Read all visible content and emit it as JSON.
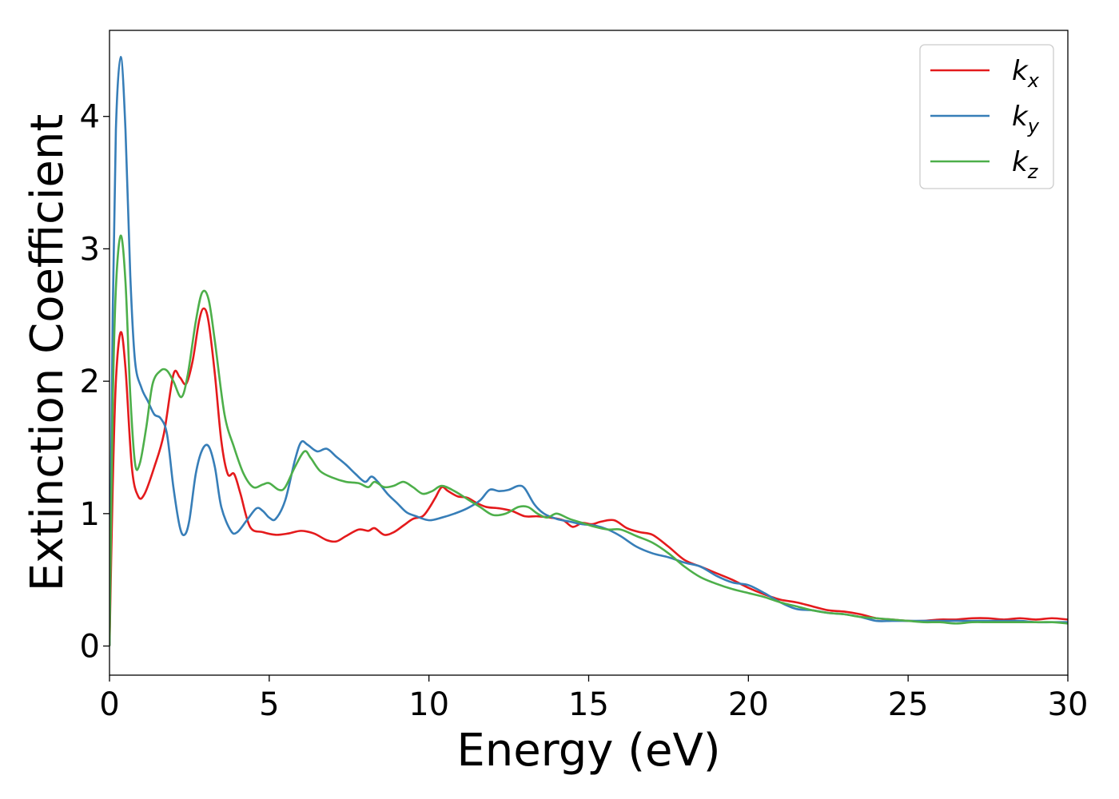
{
  "chart_data": {
    "type": "line",
    "xlabel": "Energy (eV)",
    "ylabel": "Extinction Coefficient",
    "xlim": [
      0,
      30
    ],
    "ylim": [
      -0.22,
      4.65
    ],
    "xticks": [
      0,
      5,
      10,
      15,
      20,
      25,
      30
    ],
    "xtick_labels": [
      "0",
      "5",
      "10",
      "15",
      "20",
      "25",
      "30"
    ],
    "yticks": [
      0,
      1,
      2,
      3,
      4
    ],
    "ytick_labels": [
      "0",
      "1",
      "2",
      "3",
      "4"
    ],
    "grid": false,
    "legend_position": "top-right",
    "series": [
      {
        "name": "k",
        "subscript": "x",
        "color": "#e41a1c",
        "points": [
          [
            0,
            0
          ],
          [
            0.1,
            1.2
          ],
          [
            0.2,
            2.0
          ],
          [
            0.35,
            2.37
          ],
          [
            0.5,
            2.1
          ],
          [
            0.7,
            1.35
          ],
          [
            0.9,
            1.13
          ],
          [
            1.1,
            1.15
          ],
          [
            1.4,
            1.35
          ],
          [
            1.7,
            1.6
          ],
          [
            2.0,
            2.05
          ],
          [
            2.2,
            2.03
          ],
          [
            2.4,
            1.98
          ],
          [
            2.6,
            2.15
          ],
          [
            2.8,
            2.45
          ],
          [
            2.95,
            2.55
          ],
          [
            3.1,
            2.45
          ],
          [
            3.3,
            2.05
          ],
          [
            3.5,
            1.55
          ],
          [
            3.7,
            1.3
          ],
          [
            3.9,
            1.3
          ],
          [
            4.1,
            1.15
          ],
          [
            4.4,
            0.9
          ],
          [
            4.8,
            0.86
          ],
          [
            5.2,
            0.84
          ],
          [
            5.6,
            0.85
          ],
          [
            6.0,
            0.87
          ],
          [
            6.4,
            0.85
          ],
          [
            6.8,
            0.8
          ],
          [
            7.1,
            0.79
          ],
          [
            7.4,
            0.83
          ],
          [
            7.8,
            0.88
          ],
          [
            8.1,
            0.87
          ],
          [
            8.3,
            0.89
          ],
          [
            8.6,
            0.84
          ],
          [
            8.9,
            0.86
          ],
          [
            9.2,
            0.91
          ],
          [
            9.5,
            0.96
          ],
          [
            9.8,
            0.98
          ],
          [
            10.0,
            1.04
          ],
          [
            10.2,
            1.12
          ],
          [
            10.4,
            1.2
          ],
          [
            10.6,
            1.17
          ],
          [
            10.9,
            1.13
          ],
          [
            11.2,
            1.12
          ],
          [
            11.5,
            1.08
          ],
          [
            11.8,
            1.05
          ],
          [
            12.2,
            1.04
          ],
          [
            12.6,
            1.02
          ],
          [
            13.0,
            0.98
          ],
          [
            13.4,
            0.98
          ],
          [
            13.8,
            0.97
          ],
          [
            14.2,
            0.95
          ],
          [
            14.5,
            0.9
          ],
          [
            14.8,
            0.93
          ],
          [
            15.1,
            0.92
          ],
          [
            15.4,
            0.94
          ],
          [
            15.8,
            0.95
          ],
          [
            16.2,
            0.89
          ],
          [
            16.6,
            0.86
          ],
          [
            17.0,
            0.84
          ],
          [
            17.5,
            0.75
          ],
          [
            18.0,
            0.65
          ],
          [
            18.5,
            0.6
          ],
          [
            19.0,
            0.55
          ],
          [
            19.5,
            0.5
          ],
          [
            20.0,
            0.44
          ],
          [
            20.5,
            0.39
          ],
          [
            21.0,
            0.35
          ],
          [
            21.5,
            0.33
          ],
          [
            22.0,
            0.3
          ],
          [
            22.5,
            0.27
          ],
          [
            23.0,
            0.26
          ],
          [
            23.5,
            0.24
          ],
          [
            24.0,
            0.21
          ],
          [
            24.5,
            0.2
          ],
          [
            25.0,
            0.19
          ],
          [
            25.5,
            0.19
          ],
          [
            26.0,
            0.2
          ],
          [
            26.5,
            0.2
          ],
          [
            27.0,
            0.21
          ],
          [
            27.5,
            0.21
          ],
          [
            28.0,
            0.2
          ],
          [
            28.5,
            0.21
          ],
          [
            29.0,
            0.2
          ],
          [
            29.5,
            0.21
          ],
          [
            30.0,
            0.2
          ]
        ]
      },
      {
        "name": "k",
        "subscript": "y",
        "color": "#377eb8",
        "points": [
          [
            0,
            0
          ],
          [
            0.1,
            2.5
          ],
          [
            0.2,
            3.9
          ],
          [
            0.35,
            4.45
          ],
          [
            0.5,
            3.9
          ],
          [
            0.65,
            2.8
          ],
          [
            0.8,
            2.15
          ],
          [
            1.0,
            1.95
          ],
          [
            1.2,
            1.85
          ],
          [
            1.4,
            1.75
          ],
          [
            1.6,
            1.72
          ],
          [
            1.8,
            1.6
          ],
          [
            2.0,
            1.2
          ],
          [
            2.2,
            0.9
          ],
          [
            2.35,
            0.84
          ],
          [
            2.5,
            0.95
          ],
          [
            2.7,
            1.3
          ],
          [
            2.9,
            1.48
          ],
          [
            3.1,
            1.51
          ],
          [
            3.3,
            1.35
          ],
          [
            3.5,
            1.05
          ],
          [
            3.8,
            0.87
          ],
          [
            4.0,
            0.86
          ],
          [
            4.3,
            0.95
          ],
          [
            4.6,
            1.04
          ],
          [
            4.8,
            1.02
          ],
          [
            5.0,
            0.97
          ],
          [
            5.2,
            0.96
          ],
          [
            5.5,
            1.1
          ],
          [
            5.8,
            1.4
          ],
          [
            6.0,
            1.54
          ],
          [
            6.2,
            1.52
          ],
          [
            6.5,
            1.47
          ],
          [
            6.8,
            1.49
          ],
          [
            7.1,
            1.43
          ],
          [
            7.4,
            1.37
          ],
          [
            7.7,
            1.3
          ],
          [
            8.0,
            1.24
          ],
          [
            8.2,
            1.28
          ],
          [
            8.4,
            1.24
          ],
          [
            8.7,
            1.15
          ],
          [
            9.0,
            1.08
          ],
          [
            9.3,
            1.01
          ],
          [
            9.6,
            0.98
          ],
          [
            10.0,
            0.95
          ],
          [
            10.4,
            0.97
          ],
          [
            10.8,
            1.0
          ],
          [
            11.2,
            1.04
          ],
          [
            11.6,
            1.1
          ],
          [
            11.9,
            1.18
          ],
          [
            12.2,
            1.17
          ],
          [
            12.5,
            1.18
          ],
          [
            12.8,
            1.21
          ],
          [
            13.0,
            1.19
          ],
          [
            13.3,
            1.07
          ],
          [
            13.6,
            1.0
          ],
          [
            14.0,
            0.96
          ],
          [
            14.4,
            0.94
          ],
          [
            14.8,
            0.92
          ],
          [
            15.2,
            0.91
          ],
          [
            15.6,
            0.88
          ],
          [
            16.0,
            0.83
          ],
          [
            16.5,
            0.75
          ],
          [
            17.0,
            0.7
          ],
          [
            17.5,
            0.67
          ],
          [
            18.0,
            0.63
          ],
          [
            18.5,
            0.6
          ],
          [
            19.0,
            0.53
          ],
          [
            19.5,
            0.48
          ],
          [
            20.0,
            0.46
          ],
          [
            20.5,
            0.4
          ],
          [
            21.0,
            0.33
          ],
          [
            21.5,
            0.28
          ],
          [
            22.0,
            0.27
          ],
          [
            22.5,
            0.25
          ],
          [
            23.0,
            0.24
          ],
          [
            23.5,
            0.22
          ],
          [
            24.0,
            0.19
          ],
          [
            24.5,
            0.19
          ],
          [
            25.0,
            0.19
          ],
          [
            25.5,
            0.19
          ],
          [
            26.0,
            0.19
          ],
          [
            26.5,
            0.19
          ],
          [
            27.0,
            0.19
          ],
          [
            27.5,
            0.19
          ],
          [
            28.0,
            0.19
          ],
          [
            28.5,
            0.19
          ],
          [
            29.0,
            0.18
          ],
          [
            29.5,
            0.18
          ],
          [
            30.0,
            0.18
          ]
        ]
      },
      {
        "name": "k",
        "subscript": "z",
        "color": "#4daf4a",
        "points": [
          [
            0,
            0
          ],
          [
            0.1,
            1.8
          ],
          [
            0.2,
            2.7
          ],
          [
            0.35,
            3.1
          ],
          [
            0.5,
            2.75
          ],
          [
            0.65,
            1.9
          ],
          [
            0.8,
            1.38
          ],
          [
            0.95,
            1.38
          ],
          [
            1.15,
            1.65
          ],
          [
            1.35,
            1.98
          ],
          [
            1.6,
            2.08
          ],
          [
            1.8,
            2.08
          ],
          [
            2.0,
            2.0
          ],
          [
            2.25,
            1.88
          ],
          [
            2.45,
            2.05
          ],
          [
            2.7,
            2.45
          ],
          [
            2.9,
            2.67
          ],
          [
            3.1,
            2.62
          ],
          [
            3.3,
            2.3
          ],
          [
            3.6,
            1.75
          ],
          [
            3.9,
            1.5
          ],
          [
            4.2,
            1.3
          ],
          [
            4.5,
            1.2
          ],
          [
            4.8,
            1.22
          ],
          [
            5.0,
            1.23
          ],
          [
            5.3,
            1.18
          ],
          [
            5.5,
            1.2
          ],
          [
            5.8,
            1.35
          ],
          [
            6.1,
            1.47
          ],
          [
            6.3,
            1.42
          ],
          [
            6.6,
            1.32
          ],
          [
            7.0,
            1.27
          ],
          [
            7.4,
            1.24
          ],
          [
            7.8,
            1.23
          ],
          [
            8.1,
            1.2
          ],
          [
            8.3,
            1.24
          ],
          [
            8.6,
            1.2
          ],
          [
            8.9,
            1.21
          ],
          [
            9.2,
            1.24
          ],
          [
            9.5,
            1.2
          ],
          [
            9.8,
            1.15
          ],
          [
            10.1,
            1.17
          ],
          [
            10.4,
            1.21
          ],
          [
            10.8,
            1.17
          ],
          [
            11.2,
            1.11
          ],
          [
            11.6,
            1.05
          ],
          [
            12.0,
            0.99
          ],
          [
            12.4,
            1.0
          ],
          [
            12.8,
            1.05
          ],
          [
            13.1,
            1.05
          ],
          [
            13.4,
            1.0
          ],
          [
            13.7,
            0.97
          ],
          [
            14.0,
            1.0
          ],
          [
            14.4,
            0.96
          ],
          [
            14.8,
            0.93
          ],
          [
            15.2,
            0.9
          ],
          [
            15.6,
            0.88
          ],
          [
            16.0,
            0.88
          ],
          [
            16.5,
            0.83
          ],
          [
            17.0,
            0.78
          ],
          [
            17.5,
            0.7
          ],
          [
            18.0,
            0.6
          ],
          [
            18.5,
            0.52
          ],
          [
            19.0,
            0.47
          ],
          [
            19.5,
            0.43
          ],
          [
            20.0,
            0.4
          ],
          [
            20.5,
            0.37
          ],
          [
            21.0,
            0.33
          ],
          [
            21.5,
            0.3
          ],
          [
            22.0,
            0.27
          ],
          [
            22.5,
            0.25
          ],
          [
            23.0,
            0.24
          ],
          [
            23.5,
            0.22
          ],
          [
            24.0,
            0.21
          ],
          [
            24.5,
            0.2
          ],
          [
            25.0,
            0.19
          ],
          [
            25.5,
            0.18
          ],
          [
            26.0,
            0.18
          ],
          [
            26.5,
            0.17
          ],
          [
            27.0,
            0.18
          ],
          [
            27.5,
            0.18
          ],
          [
            28.0,
            0.18
          ],
          [
            28.5,
            0.18
          ],
          [
            29.0,
            0.18
          ],
          [
            29.5,
            0.18
          ],
          [
            30.0,
            0.17
          ]
        ]
      }
    ]
  }
}
